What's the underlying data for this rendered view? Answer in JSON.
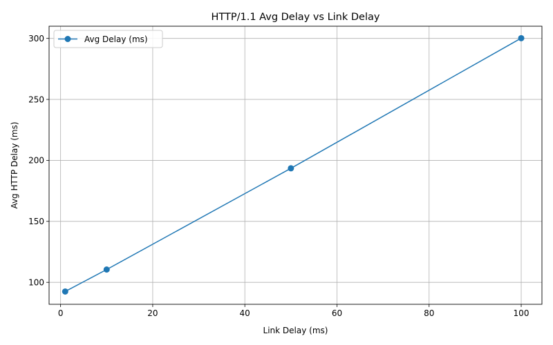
{
  "chart_data": {
    "type": "line",
    "title": "HTTP/1.1 Avg Delay vs Link Delay",
    "xlabel": "Link Delay (ms)",
    "ylabel": "Avg HTTP Delay (ms)",
    "xlim": [
      -2.5,
      104.5
    ],
    "ylim": [
      82,
      310
    ],
    "xticks": [
      0,
      20,
      40,
      60,
      80,
      100
    ],
    "yticks": [
      100,
      150,
      200,
      250,
      300
    ],
    "grid": true,
    "legend_position": "top-left",
    "series": [
      {
        "name": "Avg Delay (ms)",
        "color": "#1f77b4",
        "marker": "circle",
        "x": [
          1,
          10,
          50,
          100
        ],
        "y": [
          92.5,
          110.5,
          193.5,
          300.2
        ]
      }
    ]
  }
}
